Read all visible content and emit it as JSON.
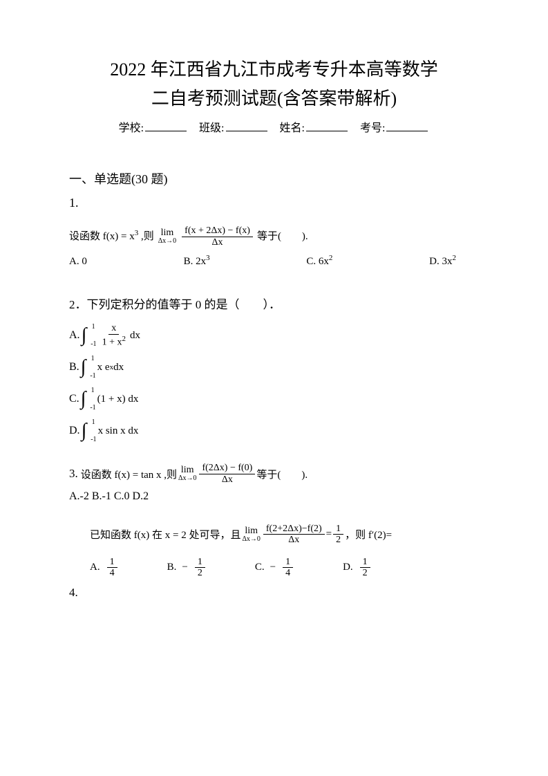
{
  "title_line1": "2022 年江西省九江市成考专升本高等数学",
  "title_line2": "二自考预测试题(含答案带解析)",
  "info": {
    "school_label": "学校:",
    "class_label": "班级:",
    "name_label": "姓名:",
    "id_label": "考号:"
  },
  "section1": "一、单选题(30 题)",
  "q1": {
    "num": "1.",
    "stem_pre": "设函数 f(x) = x",
    "stem_exp": "3",
    "stem_mid": " ,则",
    "lim_top": "lim",
    "lim_bot": "Δx→0",
    "frac_num": "f(x + 2Δx) − f(x)",
    "frac_den": "Δx",
    "stem_post": "等于(　　).",
    "optA": "A. 0",
    "optB_pre": "B. 2x",
    "optB_exp": "3",
    "optC_pre": "C. 6x",
    "optC_exp": "2",
    "optD_pre": "D. 3x",
    "optD_exp": "2"
  },
  "q2": {
    "num": "2．",
    "stem": "下列定积分的值等于 0 的是（　　）．",
    "optA_label": "A.",
    "optA_frac_num": "x",
    "optA_frac_den": "1 + x",
    "optA_frac_den_exp": "2",
    "optA_dx": " dx",
    "optB_label": "B.",
    "optB_int": "x e",
    "optB_exp": "x",
    "optB_dx": " dx",
    "optC_label": "C.",
    "optC_int": "(1 + x) dx",
    "optD_label": "D.",
    "optD_int": "x sin x dx",
    "int_upper": "1",
    "int_lower": "-1"
  },
  "q3": {
    "num": "3.",
    "stem_pre": "设函数 f(x) = tan x ,则 ",
    "lim_top": "lim",
    "lim_bot": "Δx→0",
    "frac_num": "f(2Δx) − f(0)",
    "frac_den": "Δx",
    "stem_post": "等于(　　).",
    "options": "A.-2 B.-1 C.0 D.2"
  },
  "q4": {
    "stem_pre": "已知函数 f(x) 在 x = 2 处可导，且",
    "lim_top": "lim",
    "lim_bot": "Δx→0",
    "frac_num": "f(2+2Δx)−f(2)",
    "frac_den": "Δx",
    "eq": " = ",
    "half_num": "1",
    "half_den": "2",
    "stem_post": "，则 f′(2)=",
    "optA": "A.",
    "optA_num": "1",
    "optA_den": "4",
    "optB": "B.",
    "optB_neg": "−",
    "optB_num": "1",
    "optB_den": "2",
    "optC": "C.",
    "optC_neg": "−",
    "optC_num": "1",
    "optC_den": "4",
    "optD": "D.",
    "optD_num": "1",
    "optD_den": "2",
    "num": "4."
  }
}
